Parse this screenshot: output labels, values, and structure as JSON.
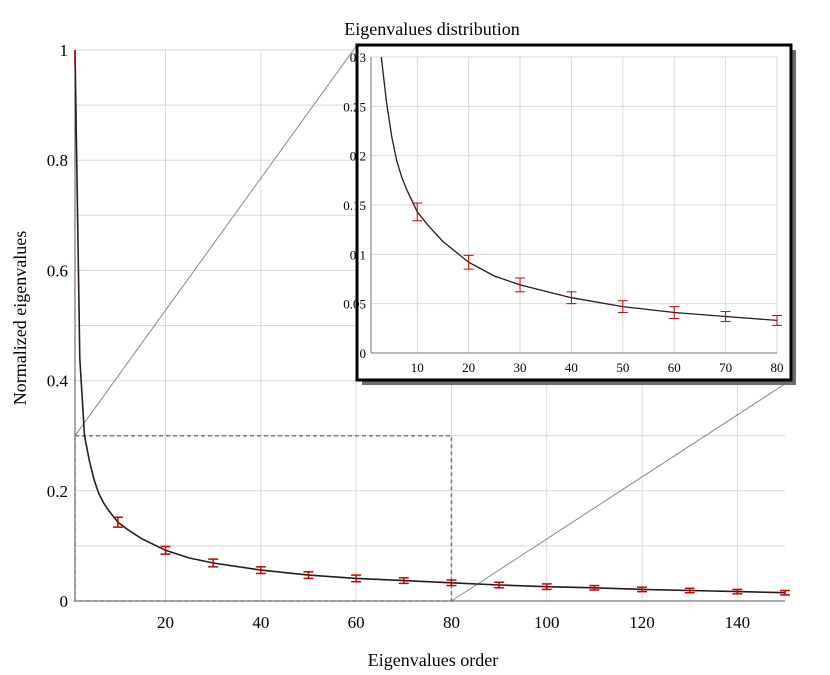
{
  "chart_data": [
    {
      "type": "line",
      "title": "",
      "xlabel": "Eigenvalues order",
      "ylabel": "Normalized eigenvalues",
      "xlim": [
        1,
        150
      ],
      "ylim": [
        0,
        1
      ],
      "grid": true,
      "x_ticks": [
        20,
        40,
        60,
        80,
        100,
        120,
        140
      ],
      "y_ticks": [
        0,
        0.2,
        0.4,
        0.6,
        0.8,
        1
      ],
      "y_tick_labels": [
        "0",
        "0.2",
        "0.4",
        "0.6",
        "0.8",
        "1"
      ],
      "series": [
        {
          "x": [
            1,
            2,
            3,
            4,
            5,
            6,
            7,
            8,
            10,
            12,
            15,
            20,
            25,
            30,
            40,
            50,
            60,
            70,
            80,
            90,
            100,
            110,
            120,
            130,
            140,
            150
          ],
          "y": [
            1.0,
            0.44,
            0.3,
            0.255,
            0.22,
            0.195,
            0.178,
            0.165,
            0.143,
            0.13,
            0.113,
            0.092,
            0.078,
            0.069,
            0.056,
            0.047,
            0.041,
            0.037,
            0.033,
            0.029,
            0.026,
            0.024,
            0.021,
            0.019,
            0.017,
            0.015
          ]
        }
      ],
      "error_bars": {
        "x": [
          10,
          20,
          30,
          40,
          50,
          60,
          70,
          80,
          90,
          100,
          110,
          120,
          130,
          140,
          150
        ],
        "y": [
          0.143,
          0.092,
          0.069,
          0.056,
          0.047,
          0.041,
          0.037,
          0.033,
          0.029,
          0.026,
          0.024,
          0.021,
          0.019,
          0.017,
          0.015
        ],
        "err": [
          0.009,
          0.007,
          0.007,
          0.006,
          0.006,
          0.006,
          0.005,
          0.005,
          0.005,
          0.005,
          0.004,
          0.004,
          0.004,
          0.004,
          0.004
        ]
      },
      "zoom_region": {
        "x": [
          1,
          80
        ],
        "y": [
          0,
          0.3
        ]
      },
      "colors": {
        "line": "#2b1a1a",
        "error": "#cc0000",
        "grid": "#d9d9d9"
      }
    },
    {
      "type": "line",
      "title": "Eigenvalues distribution",
      "xlabel": "",
      "ylabel": "",
      "xlim": [
        1,
        80
      ],
      "ylim": [
        0,
        0.3
      ],
      "grid": true,
      "x_ticks": [
        10,
        20,
        30,
        40,
        50,
        60,
        70,
        80
      ],
      "y_ticks": [
        0,
        0.05,
        0.1,
        0.15,
        0.2,
        0.25,
        0.3
      ],
      "y_tick_labels": [
        "0",
        "0.05",
        "0.1",
        "0.15",
        "0.2",
        "0.25",
        "0.3"
      ],
      "series": [
        {
          "x": [
            3,
            4,
            5,
            6,
            7,
            8,
            10,
            12,
            15,
            20,
            25,
            30,
            40,
            50,
            60,
            70,
            80
          ],
          "y": [
            0.3,
            0.255,
            0.22,
            0.195,
            0.178,
            0.165,
            0.143,
            0.13,
            0.113,
            0.092,
            0.078,
            0.069,
            0.056,
            0.047,
            0.041,
            0.037,
            0.033
          ]
        }
      ],
      "error_bars": {
        "x": [
          10,
          20,
          30,
          40,
          50,
          60,
          70,
          80
        ],
        "y": [
          0.143,
          0.092,
          0.069,
          0.056,
          0.047,
          0.041,
          0.037,
          0.033
        ],
        "err": [
          0.009,
          0.007,
          0.007,
          0.006,
          0.006,
          0.006,
          0.005,
          0.005
        ]
      },
      "colors": {
        "line": "#2b1a1a",
        "error": "#cc0000",
        "grid": "#d9d9d9"
      }
    }
  ]
}
